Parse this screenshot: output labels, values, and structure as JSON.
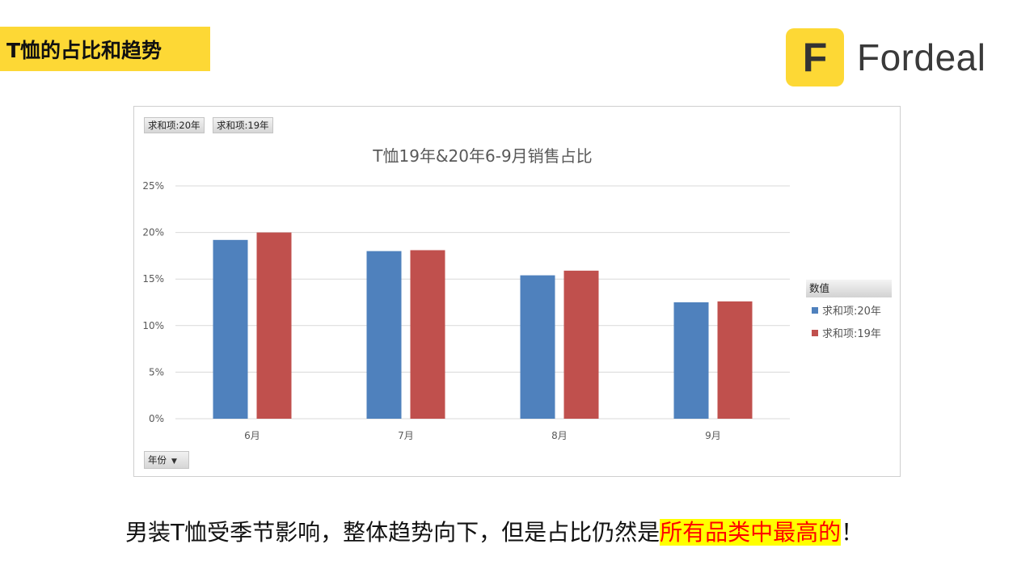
{
  "header": {
    "title": "T恤的占比和趋势"
  },
  "logo": {
    "mark": "F",
    "word": "Fordeal",
    "color": "#fdd835"
  },
  "chart_controls": {
    "field_buttons": [
      "求和项:20年",
      "求和项:19年"
    ],
    "legend_header": "数值",
    "filter_button": "年份"
  },
  "chart_data": {
    "type": "bar",
    "title": "T恤19年&20年6-9月销售占比",
    "categories": [
      "6月",
      "7月",
      "8月",
      "9月"
    ],
    "series": [
      {
        "name": "求和项:20年",
        "color": "#4f81bd",
        "values": [
          0.192,
          0.18,
          0.154,
          0.125
        ]
      },
      {
        "name": "求和项:19年",
        "color": "#c0504d",
        "values": [
          0.2,
          0.181,
          0.159,
          0.126
        ]
      }
    ],
    "ylim": [
      0,
      0.25
    ],
    "yticks": [
      "0%",
      "5%",
      "10%",
      "15%",
      "20%",
      "25%"
    ],
    "grid": true,
    "legend_position": "right"
  },
  "caption": {
    "prefix": "男装T恤受季节影响，整体趋势向下，但是占比仍然是",
    "highlight": "所有品类中最高的",
    "suffix": "！"
  }
}
